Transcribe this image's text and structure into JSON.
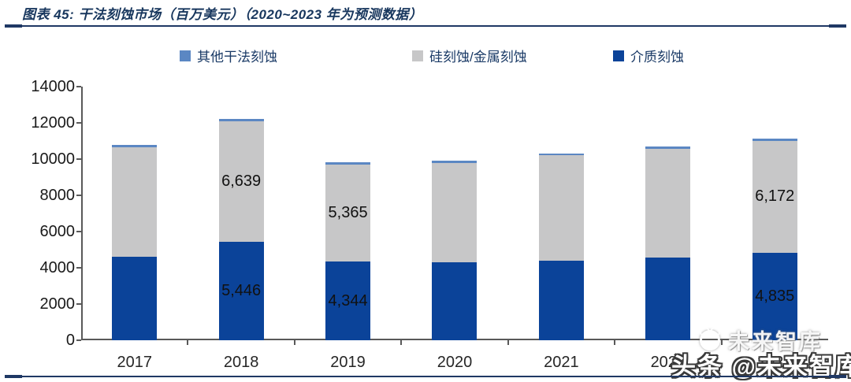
{
  "header": {
    "title": "图表 45:  干法刻蚀市场（百万美元）（2020~2023 年为预测数据）"
  },
  "legend": {
    "items": [
      {
        "label": "其他干法刻蚀",
        "color": "#5b87c3"
      },
      {
        "label": "硅刻蚀/金属刻蚀",
        "color": "#c7c7c8"
      },
      {
        "label": "介质刻蚀",
        "color": "#0b4399"
      }
    ]
  },
  "watermarks": {
    "small_text": "未来智库",
    "large_text": "头条 @未来智库"
  },
  "colors": {
    "accent_navy": "#1f3864",
    "axis": "#595959",
    "dielectric_blue": "#0b4399",
    "silicon_gray": "#c7c7c8",
    "other_blue": "#5b87c3"
  },
  "chart_data": {
    "type": "bar",
    "stacked": true,
    "title": "干法刻蚀市场（百万美元）",
    "categories": [
      "2017",
      "2018",
      "2019",
      "2020",
      "2021",
      "2022",
      "2023"
    ],
    "series": [
      {
        "name": "介质刻蚀",
        "color": "#0b4399",
        "values": [
          4600,
          5446,
          4344,
          4300,
          4400,
          4550,
          4835
        ],
        "labels": [
          null,
          "5,446",
          "4,344",
          null,
          null,
          null,
          "4,835"
        ]
      },
      {
        "name": "硅刻蚀/金属刻蚀",
        "color": "#c7c7c8",
        "values": [
          6050,
          6639,
          5365,
          5500,
          5800,
          6000,
          6172
        ],
        "labels": [
          null,
          "6,639",
          "5,365",
          null,
          null,
          null,
          "6,172"
        ]
      },
      {
        "name": "其他干法刻蚀",
        "color": "#5b87c3",
        "values": [
          130,
          150,
          120,
          120,
          120,
          130,
          130
        ],
        "labels": [
          null,
          null,
          null,
          null,
          null,
          null,
          null
        ]
      }
    ],
    "ylabel": "",
    "xlabel": "",
    "ylim": [
      0,
      14000
    ],
    "yticks": [
      0,
      2000,
      4000,
      6000,
      8000,
      10000,
      12000,
      14000
    ],
    "grid": false,
    "legend_position": "top"
  }
}
